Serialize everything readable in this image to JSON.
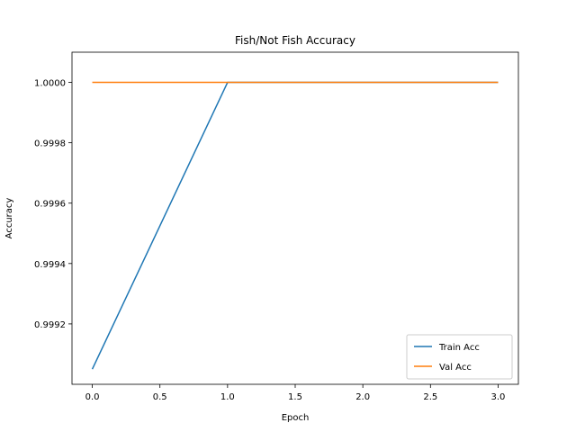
{
  "chart_data": {
    "type": "line",
    "title": "Fish/Not Fish Accuracy",
    "xlabel": "Epoch",
    "ylabel": "Accuracy",
    "x": [
      0,
      1,
      2,
      3
    ],
    "series": [
      {
        "name": "Train Acc",
        "values": [
          0.99905,
          1.0,
          1.0,
          1.0
        ],
        "color": "#1f77b4"
      },
      {
        "name": "Val Acc",
        "values": [
          1.0,
          1.0,
          1.0,
          1.0
        ],
        "color": "#ff7f0e"
      }
    ],
    "xlim": [
      -0.15,
      3.15
    ],
    "ylim": [
      0.999,
      1.0001
    ],
    "xticks": [
      0,
      0.5,
      1,
      1.5,
      2,
      2.5,
      3
    ],
    "xtick_labels": [
      "0.0",
      "0.5",
      "1.0",
      "1.5",
      "2.0",
      "2.5",
      "3.0"
    ],
    "yticks": [
      0.9992,
      0.9994,
      0.9996,
      0.9998,
      1.0
    ],
    "ytick_labels": [
      "0.9992",
      "0.9994",
      "0.9996",
      "0.9998",
      "1.0000"
    ],
    "grid": false,
    "legend_position": "lower-right"
  }
}
